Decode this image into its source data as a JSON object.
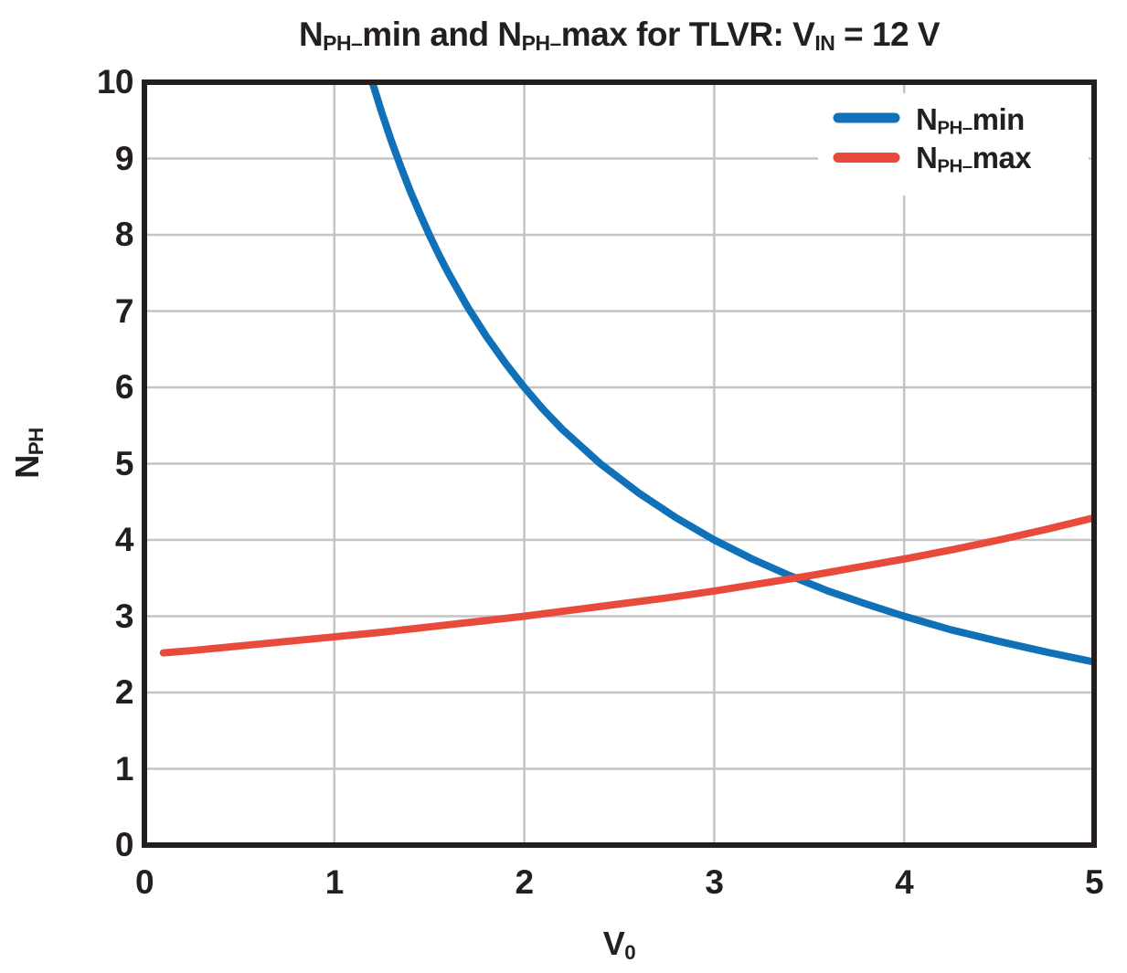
{
  "title_segments": [
    {
      "text": "N"
    },
    {
      "sub": "PH–"
    },
    {
      "text": "min and N"
    },
    {
      "sub": "PH–"
    },
    {
      "text": "max for TLVR: V"
    },
    {
      "sub": "IN"
    },
    {
      "text": " = 12 V"
    }
  ],
  "axes": {
    "x": {
      "label_segments": [
        {
          "text": "V"
        },
        {
          "sub": "0"
        }
      ],
      "ticks": [
        "0",
        "1",
        "2",
        "3",
        "4",
        "5"
      ],
      "lim": [
        0,
        5
      ]
    },
    "y": {
      "label_segments": [
        {
          "text": "N"
        },
        {
          "sub": "PH"
        }
      ],
      "ticks": [
        "0",
        "1",
        "2",
        "3",
        "4",
        "5",
        "6",
        "7",
        "8",
        "9",
        "10"
      ],
      "lim": [
        0,
        10
      ]
    }
  },
  "legend": {
    "items": [
      {
        "name_segments": [
          {
            "text": "N"
          },
          {
            "sub": "PH–"
          },
          {
            "text": "min"
          }
        ],
        "color": "#1071b8"
      },
      {
        "name_segments": [
          {
            "text": "N"
          },
          {
            "sub": "PH–"
          },
          {
            "text": "max"
          }
        ],
        "color": "#e84a3c"
      }
    ]
  },
  "chart_data": {
    "type": "line",
    "title": "N_PH_min and N_PH_max for TLVR: V_IN = 12 V",
    "xlabel": "V_0",
    "ylabel": "N_PH",
    "xlim": [
      0,
      5
    ],
    "ylim": [
      0,
      10
    ],
    "grid": true,
    "legend_position": "upper right",
    "grid_color": "#c4c4c4",
    "spine_color": "#231f20",
    "series": [
      {
        "name": "N_PH_min",
        "color": "#1071b8",
        "points": [
          [
            1.2,
            10
          ],
          [
            1.25,
            9.6
          ],
          [
            1.3,
            9.23
          ],
          [
            1.35,
            8.89
          ],
          [
            1.4,
            8.57
          ],
          [
            1.45,
            8.28
          ],
          [
            1.5,
            8.0
          ],
          [
            1.55,
            7.74
          ],
          [
            1.6,
            7.5
          ],
          [
            1.7,
            7.06
          ],
          [
            1.8,
            6.67
          ],
          [
            1.9,
            6.32
          ],
          [
            2.0,
            6.0
          ],
          [
            2.1,
            5.71
          ],
          [
            2.2,
            5.45
          ],
          [
            2.4,
            5.0
          ],
          [
            2.6,
            4.62
          ],
          [
            2.8,
            4.29
          ],
          [
            3.0,
            4.0
          ],
          [
            3.2,
            3.75
          ],
          [
            3.4,
            3.53
          ],
          [
            3.6,
            3.33
          ],
          [
            3.8,
            3.16
          ],
          [
            4.0,
            3.0
          ],
          [
            4.25,
            2.82
          ],
          [
            4.5,
            2.67
          ],
          [
            4.75,
            2.53
          ],
          [
            5.0,
            2.4
          ]
        ]
      },
      {
        "name": "N_PH_max",
        "color": "#e84a3c",
        "points": [
          [
            0.1,
            2.52
          ],
          [
            0.25,
            2.55
          ],
          [
            0.5,
            2.61
          ],
          [
            0.75,
            2.67
          ],
          [
            1.0,
            2.73
          ],
          [
            1.25,
            2.79
          ],
          [
            1.5,
            2.86
          ],
          [
            1.75,
            2.93
          ],
          [
            2.0,
            3.0
          ],
          [
            2.25,
            3.08
          ],
          [
            2.5,
            3.16
          ],
          [
            2.75,
            3.24
          ],
          [
            3.0,
            3.33
          ],
          [
            3.25,
            3.43
          ],
          [
            3.5,
            3.53
          ],
          [
            3.75,
            3.64
          ],
          [
            4.0,
            3.75
          ],
          [
            4.25,
            3.87
          ],
          [
            4.5,
            4.0
          ],
          [
            4.75,
            4.14
          ],
          [
            5.0,
            4.29
          ]
        ]
      }
    ]
  }
}
